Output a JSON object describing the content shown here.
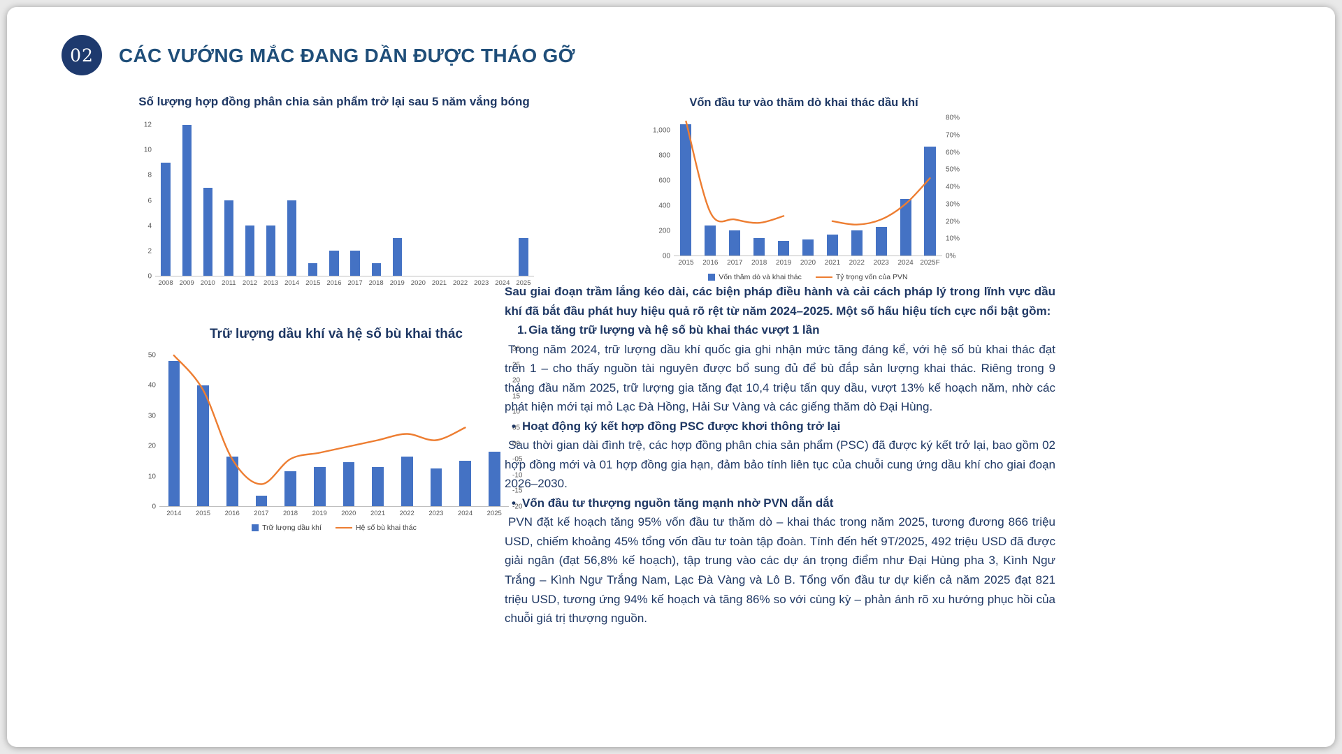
{
  "page": {
    "badge": "02",
    "title": "CÁC VƯỚNG MẮC ĐANG DẦN ĐƯỢC THÁO GỠ"
  },
  "colors": {
    "accent": "#1F4E79",
    "text": "#1F3864",
    "bar": "#4472C4",
    "line": "#ED7D31",
    "badge_bg": "#1E3A6E"
  },
  "chart_data": [
    {
      "id": "psc",
      "type": "bar",
      "title": "Số lượng hợp đồng phân chia sản phẩm trở lại sau 5 năm vắng bóng",
      "categories": [
        "2008",
        "2009",
        "2010",
        "2011",
        "2012",
        "2013",
        "2014",
        "2015",
        "2016",
        "2017",
        "2018",
        "2019",
        "2020",
        "2021",
        "2022",
        "2023",
        "2024",
        "2025"
      ],
      "series": [
        {
          "name": "Số lượng hợp đồng",
          "type": "bar",
          "axis": "left",
          "values": [
            9,
            12,
            7,
            6,
            4,
            4,
            6,
            1,
            2,
            2,
            1,
            3,
            0,
            0,
            0,
            0,
            0,
            3
          ]
        }
      ],
      "left_axis": {
        "labels": [
          "12",
          "10",
          "8",
          "6",
          "4",
          "2",
          "0"
        ],
        "values": [
          12,
          10,
          8,
          6,
          4,
          2,
          0
        ],
        "range": [
          0,
          12.5
        ]
      },
      "right_axis": null,
      "legend": false
    },
    {
      "id": "capex",
      "type": "bar+line",
      "title": "Vốn đầu tư vào thăm dò khai thác dầu khí",
      "categories": [
        "2015",
        "2016",
        "2017",
        "2018",
        "2019",
        "2020",
        "2021",
        "2022",
        "2023",
        "2024",
        "2025F"
      ],
      "series": [
        {
          "name": "Vốn thăm dò và khai thác",
          "type": "bar",
          "axis": "left",
          "values": [
            1050,
            240,
            200,
            140,
            120,
            130,
            170,
            200,
            230,
            450,
            870
          ]
        },
        {
          "name": "Tỷ trọng vốn của PVN",
          "type": "line",
          "axis": "right",
          "values": [
            78,
            25,
            21,
            19,
            23,
            null,
            20,
            18,
            21,
            30,
            45
          ]
        }
      ],
      "left_axis": {
        "labels": [
          "1,000",
          "800",
          "600",
          "400",
          "200",
          "00"
        ],
        "values": [
          1000,
          800,
          600,
          400,
          200,
          0
        ],
        "range": [
          0,
          1100
        ]
      },
      "right_axis": {
        "labels": [
          "80%",
          "70%",
          "60%",
          "50%",
          "40%",
          "30%",
          "20%",
          "10%",
          "0%"
        ],
        "values": [
          80,
          70,
          60,
          50,
          40,
          30,
          20,
          10,
          0
        ],
        "range": [
          0,
          80
        ]
      },
      "legend": true
    },
    {
      "id": "reserves",
      "type": "bar+line",
      "title": "Trữ lượng dầu khí và hệ số bù khai thác",
      "categories": [
        "2014",
        "2015",
        "2016",
        "2017",
        "2018",
        "2019",
        "2020",
        "2021",
        "2022",
        "2023",
        "2024",
        "2025"
      ],
      "series": [
        {
          "name": "Trữ lượng dầu khí",
          "type": "bar",
          "axis": "left",
          "values": [
            48,
            40,
            16.5,
            3.5,
            11.5,
            13,
            14.5,
            13,
            16.5,
            12.5,
            15,
            18
          ]
        },
        {
          "name": "Hệ số bù khai thác",
          "type": "line",
          "axis": "right",
          "values": [
            28,
            17,
            -5,
            -13,
            -5,
            -3,
            -1,
            1,
            3,
            1,
            5,
            null
          ]
        }
      ],
      "left_axis": {
        "labels": [
          "50",
          "40",
          "30",
          "20",
          "10",
          "0"
        ],
        "values": [
          50,
          40,
          30,
          20,
          10,
          0
        ],
        "range": [
          0,
          52
        ]
      },
      "right_axis": {
        "labels": [
          "30",
          "25",
          "20",
          "15",
          "10",
          "05",
          "00",
          "-05",
          "-10",
          "-15",
          "-20"
        ],
        "values": [
          30,
          25,
          20,
          15,
          10,
          5,
          0,
          -5,
          -10,
          -15,
          -20
        ],
        "range": [
          -20,
          30
        ]
      },
      "legend": true
    }
  ],
  "article": {
    "intro": "Sau giai đoạn trầm lắng kéo dài, các biện pháp điều hành và cải cách pháp lý trong lĩnh vực dầu khí đã bắt đầu phát huy hiệu quả rõ rệt từ năm 2024–2025. Một số hấu hiệu tích cực nổi bật gồm:",
    "items": [
      {
        "marker": "1.",
        "heading": "Gia tăng trữ lượng và hệ số bù khai thác vượt 1 lần",
        "body": "Trong năm 2024, trữ lượng dầu khí quốc gia ghi nhận mức tăng đáng kể, với hệ số bù khai thác đạt trên 1 – cho thấy nguồn tài nguyên được bổ sung đủ để bù đắp sản lượng khai thác. Riêng trong 9 tháng đầu năm 2025, trữ lượng gia tăng đạt 10,4 triệu tấn quy dầu, vượt 13% kế hoạch năm, nhờ các phát hiện mới tại mỏ Lạc Đà Hồng, Hải Sư Vàng và các giếng thăm dò Đại Hùng."
      },
      {
        "marker": "•",
        "heading": "Hoạt động ký kết hợp đồng PSC được khơi thông trở lại",
        "body": "Sau thời gian dài đình trệ, các hợp đồng phân chia sản phẩm (PSC) đã được ký kết trở lại, bao gồm 02 hợp đồng mới và 01 hợp đồng gia hạn, đảm bảo tính liên tục của chuỗi cung ứng dầu khí cho giai đoạn 2026–2030."
      },
      {
        "marker": "•",
        "heading": "Vốn đầu tư thượng nguồn tăng mạnh nhờ PVN dẫn dắt",
        "body": "PVN đặt kế hoạch tăng 95% vốn đầu tư thăm dò – khai thác trong năm 2025, tương đương 866 triệu USD, chiếm khoảng 45% tổng vốn đầu tư toàn tập đoàn. Tính đến hết 9T/2025, 492 triệu USD đã được giải ngân (đạt 56,8% kế hoạch), tập trung vào các dự án trọng điểm như Đại Hùng pha 3, Kình Ngư Trắng – Kình Ngư Trắng Nam, Lạc Đà Vàng và Lô B. Tổng vốn đầu tư dự kiến cả năm 2025 đạt 821 triệu USD, tương ứng 94% kế hoạch và tăng 86% so với cùng kỳ – phản ánh rõ xu hướng phục hồi của chuỗi giá trị thượng nguồn."
      }
    ]
  }
}
